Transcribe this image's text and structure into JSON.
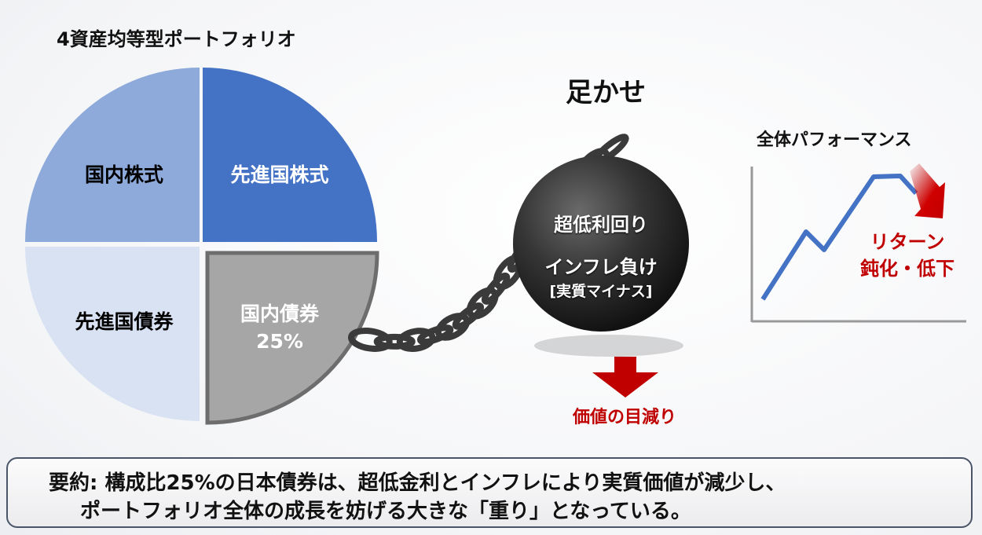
{
  "pie": {
    "title": "4資産均等型ポートフォリオ",
    "slices": [
      {
        "label": "国内株式",
        "value": 25,
        "color": "#8eaadb"
      },
      {
        "label": "先進国株式",
        "value": 25,
        "color": "#4472c4"
      },
      {
        "label": "先進国債券",
        "value": 25,
        "color": "#d9e2f3"
      },
      {
        "label": "国内債券",
        "value": 25,
        "value_label": "25%",
        "color": "#a6a6a6"
      }
    ]
  },
  "ball": {
    "title": "足かせ",
    "line1": "超低利回り",
    "line2": "インフレ負け",
    "line3": "[実質マイナス]",
    "arrow_label": "価値の目減り"
  },
  "performance": {
    "title": "全体パフォーマンス",
    "label_line1": "リターン",
    "label_line2": "鈍化・低下",
    "line_color": "#4472c4",
    "accent_color": "#c00000"
  },
  "summary": {
    "line1": "要約: 構成比25%の日本債券は、超低金利とインフレにより実質価値が減少し、",
    "line2": "ポートフォリオ全体の成長を妨げる大きな「重り」となっている。"
  }
}
